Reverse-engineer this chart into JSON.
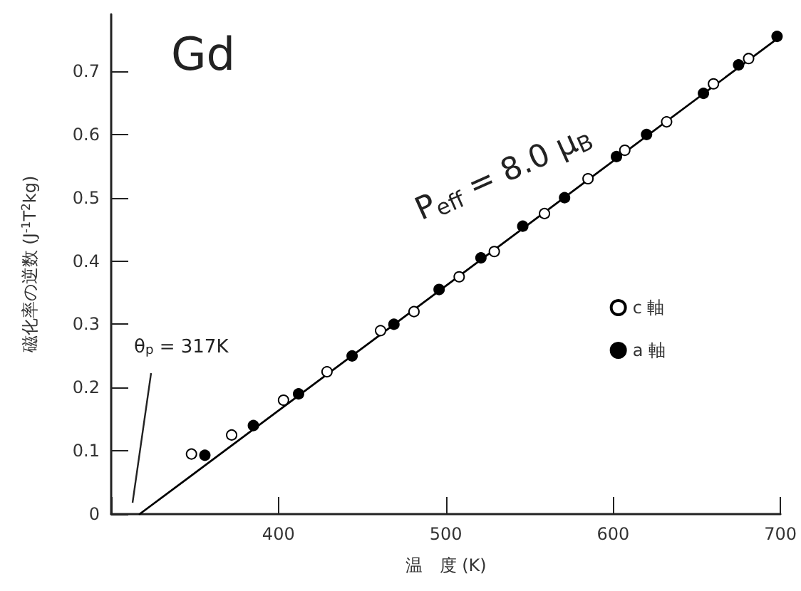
{
  "chart_data": {
    "type": "scatter",
    "xlabel": "温　度 (K)",
    "ylabel": "磁化率の逆数 (J$^{-1}$T$^{2}$kg)",
    "xlim": [
      300,
      700
    ],
    "ylim": [
      0,
      0.79
    ],
    "xticks": [
      {
        "value": 300,
        "label": null
      },
      400,
      500,
      600,
      700
    ],
    "yticks": [
      0,
      0.1,
      0.2,
      0.3,
      0.4,
      0.5,
      0.6,
      0.7
    ],
    "grid": false,
    "legend": "right",
    "annotations": [
      "Gd",
      "P$_{eff}$ = 8.0 μ$_{B}$",
      "θ$_{p}$ = 317K"
    ],
    "series": [
      {
        "name": "c 軸",
        "color": "#ffffff",
        "marker": "circle",
        "x": [
          348,
          372,
          403,
          429,
          461,
          481,
          508,
          529,
          559,
          585,
          607,
          632,
          660,
          681
        ],
        "values": [
          0.095,
          0.125,
          0.18,
          0.225,
          0.29,
          0.32,
          0.375,
          0.415,
          0.475,
          0.53,
          0.575,
          0.62,
          0.68,
          0.72
        ]
      },
      {
        "name": "a 軸",
        "color": "#000000",
        "marker": "circle",
        "x": [
          356,
          385,
          412,
          444,
          469,
          496,
          521,
          546,
          571,
          602,
          620,
          654,
          675,
          698
        ],
        "values": [
          0.093,
          0.14,
          0.19,
          0.25,
          0.3,
          0.355,
          0.405,
          0.455,
          0.5,
          0.565,
          0.6,
          0.665,
          0.71,
          0.755
        ]
      },
      {
        "type": "line",
        "color": "#000000",
        "marker": "none",
        "x": [
          317,
          700
        ],
        "values": [
          0,
          0.755
        ]
      }
    ]
  }
}
